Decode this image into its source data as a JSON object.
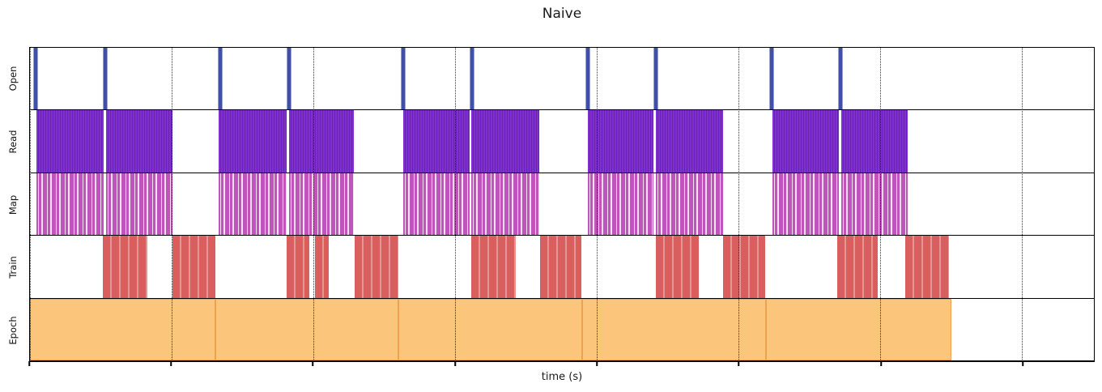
{
  "figure": {
    "title": "Naive",
    "xlabel": "time (s)",
    "background_color": "#ffffff"
  },
  "chart_data": {
    "type": "bar",
    "subtype": "broken-horizontal-bar timeline (Gantt-style execution trace, one track per pipeline stage)",
    "title": "Naive",
    "xlabel": "time (s)",
    "ylabel": "",
    "legend": "none",
    "x_axis": {
      "tick_labels": [],
      "tick_labels_visible": false,
      "tick_positions_pct": [
        0,
        13.3,
        26.6,
        39.97,
        53.27,
        66.57,
        79.94,
        93.24
      ],
      "gridlines": "vertical dotted black at each tick, drawn over bars"
    },
    "rows": [
      {
        "label": "Open",
        "kind": "events",
        "color": "#4050a8",
        "events_pct": [
          0.46,
          6.99,
          17.78,
          24.24,
          35.03,
          41.49,
          52.36,
          58.74,
          69.6,
          76.14
        ]
      },
      {
        "label": "Read",
        "kind": "spans",
        "color": "#7e30d2",
        "stripe_color": "#6a22ab",
        "spans_pct": [
          [
            0.61,
            6.91
          ],
          [
            7.14,
            13.37
          ],
          [
            17.71,
            24.09
          ],
          [
            24.39,
            30.47
          ],
          [
            35.11,
            41.34
          ],
          [
            41.49,
            47.87
          ],
          [
            52.43,
            58.59
          ],
          [
            58.81,
            65.12
          ],
          [
            69.76,
            76.06
          ],
          [
            76.29,
            82.52
          ]
        ]
      },
      {
        "label": "Map",
        "kind": "spans",
        "color": "#c153bd",
        "gap_color": "#f4e0f2",
        "spans_pct": [
          [
            0.61,
            6.91
          ],
          [
            7.14,
            13.37
          ],
          [
            17.71,
            24.09
          ],
          [
            24.39,
            30.47
          ],
          [
            35.11,
            41.34
          ],
          [
            41.49,
            47.87
          ],
          [
            52.43,
            58.59
          ],
          [
            58.81,
            65.12
          ],
          [
            69.76,
            76.06
          ],
          [
            76.29,
            82.52
          ]
        ]
      },
      {
        "label": "Train",
        "kind": "spans",
        "color": "#d95f5f",
        "separator_color": "#e49595",
        "spans_pct": [
          [
            6.84,
            11.02
          ],
          [
            13.37,
            17.4
          ],
          [
            24.16,
            26.22
          ],
          [
            26.82,
            28.12
          ],
          [
            30.55,
            34.65
          ],
          [
            41.49,
            45.67
          ],
          [
            47.95,
            51.82
          ],
          [
            58.81,
            62.84
          ],
          [
            65.12,
            69.07
          ],
          [
            75.91,
            79.71
          ],
          [
            82.29,
            86.4
          ]
        ]
      },
      {
        "label": "Epoch",
        "kind": "spans",
        "color": "#fcc57c",
        "edge_color": "#f0a14c",
        "spans_pct": [
          [
            0,
            17.4
          ],
          [
            17.4,
            34.65
          ],
          [
            34.65,
            51.9
          ],
          [
            51.9,
            69.15
          ],
          [
            69.15,
            86.63
          ]
        ]
      }
    ]
  }
}
